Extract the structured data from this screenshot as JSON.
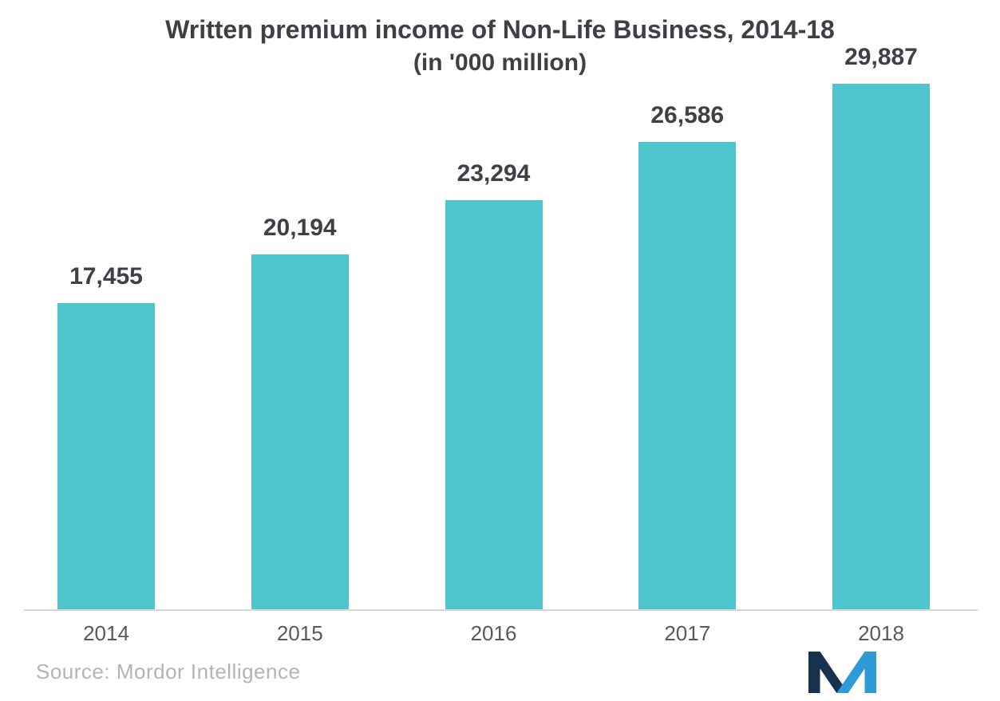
{
  "chart_data": {
    "type": "bar",
    "title": "Written premium income of Non-Life Business, 2014-18",
    "subtitle": "(in '000 million)",
    "categories": [
      "2014",
      "2015",
      "2016",
      "2017",
      "2018"
    ],
    "values": [
      17455,
      20194,
      23294,
      26586,
      29887
    ],
    "value_labels": [
      "17,455",
      "20,194",
      "23,294",
      "26,586",
      "29,887"
    ],
    "xlabel": "",
    "ylabel": "",
    "ylim": [
      0,
      29887
    ],
    "grid": false,
    "legend": false,
    "bar_orientation": "vertical"
  },
  "footer": {
    "source_text": "Source: Mordor Intelligence"
  },
  "colors": {
    "bar": "#4ec5cd",
    "title": "#3f4045",
    "value_label": "#3f4045",
    "tick_label": "#595959",
    "axis_line": "#d9d9d9",
    "source_text": "#b3b3ba",
    "logo_dark": "#16324f",
    "logo_light": "#2f9bd6"
  }
}
